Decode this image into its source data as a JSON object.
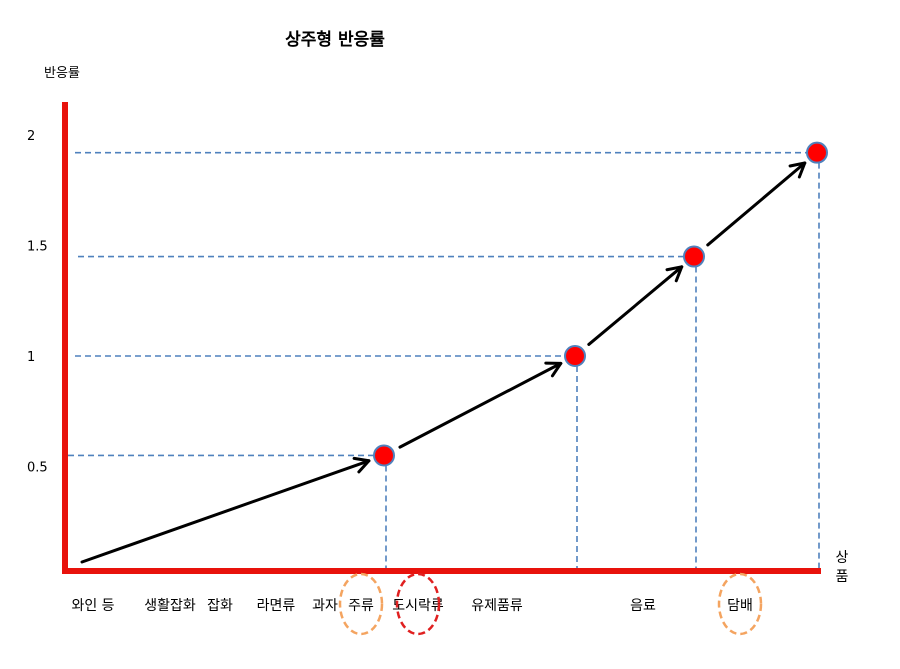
{
  "chart_data": {
    "type": "line",
    "title": "상주형 반응률",
    "ylabel": "반응률",
    "xlabel": "상품",
    "ylim": [
      0,
      2
    ],
    "yticks": [
      "0.5",
      "1",
      "1.5",
      "2"
    ],
    "categories": [
      "와인 등",
      "생활잡화",
      "잡화",
      "라면류",
      "과자",
      "주류",
      "도시락류",
      "유제품류",
      "음료",
      "담배"
    ],
    "circled_categories": [
      {
        "label": "주류",
        "color": "#f4a460"
      },
      {
        "label": "도시락류",
        "color": "#e02020"
      },
      {
        "label": "담배",
        "color": "#f4a460"
      }
    ],
    "series": [
      {
        "points": [
          {
            "x": "주류",
            "y": 0.55
          },
          {
            "x": "음료",
            "y": 1.0
          },
          {
            "x": "담배",
            "y": 1.45
          },
          {
            "x": "담배",
            "y": 1.92
          }
        ]
      }
    ],
    "colors": {
      "axis": "#e8120c",
      "guide": "#4f81bd",
      "marker": "#ff0000",
      "marker_stroke": "#4f81bd",
      "arrow": "#000000"
    },
    "grid": false
  }
}
